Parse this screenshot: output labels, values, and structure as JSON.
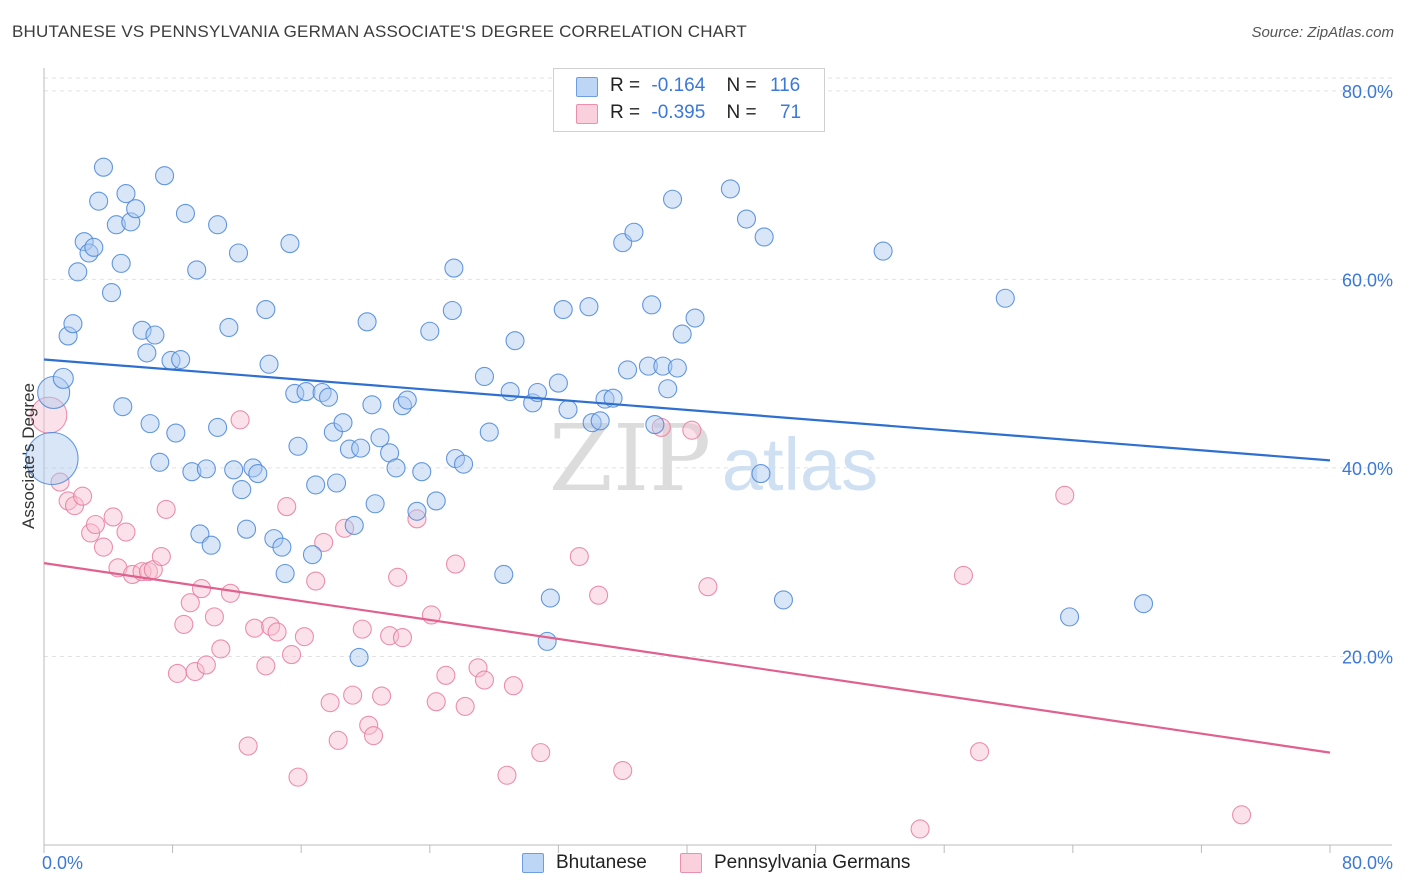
{
  "header": {
    "title": "BHUTANESE VS PENNSYLVANIA GERMAN ASSOCIATE'S DEGREE CORRELATION CHART",
    "source": "Source: ZipAtlas.com"
  },
  "legend": {
    "rows": [
      {
        "r_label": "R =",
        "r_value": "-0.164",
        "n_label": "N =",
        "n_value": "116"
      },
      {
        "r_label": "R =",
        "r_value": "-0.395",
        "n_label": "N =",
        "n_value": "71"
      }
    ]
  },
  "watermark": {
    "zip": "ZIP",
    "atlas": "atlas"
  },
  "colors": {
    "blue_fill": "#a9c8f0",
    "blue_stroke": "#4a86d8",
    "blue_line": "#2f6fd0",
    "pink_fill": "#f7bfd0",
    "pink_stroke": "#e87ca0",
    "pink_line": "#e0608e",
    "axis_label": "#3b78d8",
    "grid": "#e2e2e2"
  },
  "chart_data": {
    "type": "scatter",
    "title": "BHUTANESE VS PENNSYLVANIA GERMAN ASSOCIATE'S DEGREE CORRELATION CHART",
    "xlabel": "",
    "ylabel": "Associate's Degree",
    "xlim": [
      0,
      80
    ],
    "ylim": [
      0,
      82
    ],
    "x_tick_labels": [
      "0.0%",
      "80.0%"
    ],
    "y_ticks": [
      20,
      40,
      60,
      80
    ],
    "y_tick_labels": [
      "20.0%",
      "40.0%",
      "60.0%",
      "80.0%"
    ],
    "grid": true,
    "legend_position": "bottom-center",
    "series": [
      {
        "name": "Bhutanese",
        "color": "#a9c8f0",
        "trend": {
          "x": [
            0,
            80
          ],
          "y": [
            51.5,
            40.8
          ]
        },
        "points": [
          [
            0.5,
            41.0,
            26
          ],
          [
            0.6,
            48.0,
            16
          ],
          [
            1.2,
            49.5,
            10
          ],
          [
            1.5,
            54.0,
            9
          ],
          [
            1.8,
            55.3,
            9
          ],
          [
            2.1,
            60.8,
            9
          ],
          [
            2.5,
            64.0,
            9
          ],
          [
            2.8,
            62.8,
            9
          ],
          [
            3.1,
            63.4,
            9
          ],
          [
            3.4,
            68.3,
            9
          ],
          [
            3.7,
            71.9,
            9
          ],
          [
            4.2,
            58.6,
            9
          ],
          [
            4.5,
            65.8,
            9
          ],
          [
            4.8,
            61.7,
            9
          ],
          [
            5.1,
            69.1,
            9
          ],
          [
            5.4,
            66.1,
            9
          ],
          [
            5.7,
            67.5,
            9
          ],
          [
            6.1,
            54.6,
            9
          ],
          [
            6.4,
            52.2,
            9
          ],
          [
            6.6,
            44.7,
            9
          ],
          [
            6.9,
            54.1,
            9
          ],
          [
            7.2,
            40.6,
            9
          ],
          [
            7.5,
            71.0,
            9
          ],
          [
            7.9,
            51.4,
            9
          ],
          [
            8.2,
            43.7,
            9
          ],
          [
            8.5,
            51.5,
            9
          ],
          [
            8.8,
            67.0,
            9
          ],
          [
            9.2,
            39.6,
            9
          ],
          [
            9.5,
            61.0,
            9
          ],
          [
            9.7,
            33.0,
            9
          ],
          [
            10.1,
            39.9,
            9
          ],
          [
            10.4,
            31.8,
            9
          ],
          [
            10.8,
            44.3,
            9
          ],
          [
            10.8,
            65.8,
            9
          ],
          [
            11.5,
            54.9,
            9
          ],
          [
            11.8,
            39.8,
            9
          ],
          [
            12.1,
            62.8,
            9
          ],
          [
            12.3,
            37.7,
            9
          ],
          [
            12.6,
            33.5,
            9
          ],
          [
            13.0,
            40.0,
            9
          ],
          [
            13.3,
            39.4,
            9
          ],
          [
            13.8,
            56.8,
            9
          ],
          [
            14.0,
            51.0,
            9
          ],
          [
            14.3,
            32.5,
            9
          ],
          [
            14.8,
            31.6,
            9
          ],
          [
            15.0,
            28.8,
            9
          ],
          [
            15.3,
            63.8,
            9
          ],
          [
            15.6,
            47.9,
            9
          ],
          [
            15.8,
            42.3,
            9
          ],
          [
            16.3,
            48.1,
            9
          ],
          [
            16.7,
            30.8,
            9
          ],
          [
            16.9,
            38.2,
            9
          ],
          [
            17.3,
            48.0,
            9
          ],
          [
            17.7,
            47.5,
            9
          ],
          [
            18.0,
            43.8,
            9
          ],
          [
            18.2,
            38.4,
            9
          ],
          [
            18.6,
            44.8,
            9
          ],
          [
            19.0,
            42.0,
            9
          ],
          [
            19.3,
            33.9,
            9
          ],
          [
            19.7,
            42.1,
            9
          ],
          [
            20.1,
            55.5,
            9
          ],
          [
            20.4,
            46.7,
            9
          ],
          [
            20.6,
            36.2,
            9
          ],
          [
            20.9,
            43.2,
            9
          ],
          [
            21.5,
            41.6,
            9
          ],
          [
            21.9,
            40.0,
            9
          ],
          [
            22.3,
            46.6,
            9
          ],
          [
            22.6,
            47.2,
            9
          ],
          [
            23.2,
            35.4,
            9
          ],
          [
            23.5,
            39.6,
            9
          ],
          [
            24.0,
            54.5,
            9
          ],
          [
            24.4,
            36.5,
            9
          ],
          [
            25.4,
            56.7,
            9
          ],
          [
            25.5,
            61.2,
            9
          ],
          [
            25.6,
            41.0,
            9
          ],
          [
            26.1,
            40.4,
            9
          ],
          [
            27.4,
            49.7,
            9
          ],
          [
            27.7,
            43.8,
            9
          ],
          [
            28.6,
            28.7,
            9
          ],
          [
            29.0,
            48.1,
            9
          ],
          [
            29.3,
            53.5,
            9
          ],
          [
            30.4,
            46.9,
            9
          ],
          [
            30.7,
            48.0,
            9
          ],
          [
            31.3,
            21.6,
            9
          ],
          [
            31.5,
            26.2,
            9
          ],
          [
            32.0,
            49.0,
            9
          ],
          [
            32.3,
            56.8,
            9
          ],
          [
            32.6,
            46.2,
            9
          ],
          [
            33.9,
            57.1,
            9
          ],
          [
            34.1,
            44.8,
            9
          ],
          [
            34.6,
            45.0,
            9
          ],
          [
            34.9,
            47.3,
            9
          ],
          [
            35.4,
            47.4,
            9
          ],
          [
            36.0,
            63.9,
            9
          ],
          [
            36.3,
            50.4,
            9
          ],
          [
            36.7,
            65.0,
            9
          ],
          [
            37.6,
            50.8,
            9
          ],
          [
            37.8,
            57.3,
            9
          ],
          [
            38.0,
            44.6,
            9
          ],
          [
            38.5,
            50.8,
            9
          ],
          [
            38.8,
            48.4,
            9
          ],
          [
            39.1,
            68.5,
            9
          ],
          [
            39.4,
            50.6,
            9
          ],
          [
            39.7,
            54.2,
            9
          ],
          [
            40.5,
            55.9,
            9
          ],
          [
            42.7,
            69.6,
            9
          ],
          [
            43.7,
            66.4,
            9
          ],
          [
            44.6,
            39.4,
            9
          ],
          [
            44.8,
            64.5,
            9
          ],
          [
            46.0,
            26.0,
            9
          ],
          [
            52.2,
            63.0,
            9
          ],
          [
            59.8,
            58.0,
            9
          ],
          [
            63.8,
            24.2,
            9
          ],
          [
            68.4,
            25.6,
            9
          ],
          [
            19.6,
            19.9,
            9
          ],
          [
            4.9,
            46.5,
            9
          ]
        ]
      },
      {
        "name": "Pennsylvania Germans",
        "color": "#f7bfd0",
        "trend": {
          "x": [
            0,
            80
          ],
          "y": [
            29.9,
            9.8
          ]
        },
        "points": [
          [
            0.3,
            45.6,
            18
          ],
          [
            1.0,
            38.5,
            9
          ],
          [
            1.5,
            36.5,
            9
          ],
          [
            1.9,
            36.0,
            9
          ],
          [
            2.4,
            37.0,
            9
          ],
          [
            2.9,
            33.1,
            9
          ],
          [
            3.2,
            34.0,
            9
          ],
          [
            3.7,
            31.6,
            9
          ],
          [
            4.3,
            34.8,
            9
          ],
          [
            4.6,
            29.4,
            9
          ],
          [
            5.1,
            33.2,
            9
          ],
          [
            5.5,
            28.7,
            9
          ],
          [
            6.1,
            29.0,
            9
          ],
          [
            6.5,
            29.0,
            9
          ],
          [
            6.8,
            29.2,
            9
          ],
          [
            7.3,
            30.6,
            9
          ],
          [
            7.6,
            35.6,
            9
          ],
          [
            8.3,
            18.2,
            9
          ],
          [
            8.7,
            23.4,
            9
          ],
          [
            9.1,
            25.7,
            9
          ],
          [
            9.4,
            18.4,
            9
          ],
          [
            9.8,
            27.2,
            9
          ],
          [
            10.1,
            19.1,
            9
          ],
          [
            10.6,
            24.2,
            9
          ],
          [
            11.0,
            20.8,
            9
          ],
          [
            11.6,
            26.7,
            9
          ],
          [
            12.2,
            45.1,
            9
          ],
          [
            12.7,
            10.5,
            9
          ],
          [
            13.1,
            23.0,
            9
          ],
          [
            13.8,
            19.0,
            9
          ],
          [
            14.1,
            23.2,
            9
          ],
          [
            14.5,
            22.6,
            9
          ],
          [
            15.1,
            35.9,
            9
          ],
          [
            15.4,
            20.2,
            9
          ],
          [
            15.8,
            7.2,
            9
          ],
          [
            16.2,
            22.1,
            9
          ],
          [
            16.9,
            28.0,
            9
          ],
          [
            17.4,
            32.1,
            9
          ],
          [
            17.8,
            15.1,
            9
          ],
          [
            18.3,
            11.1,
            9
          ],
          [
            18.7,
            33.6,
            9
          ],
          [
            19.2,
            15.9,
            9
          ],
          [
            19.8,
            22.9,
            9
          ],
          [
            20.2,
            12.7,
            9
          ],
          [
            20.5,
            11.6,
            9
          ],
          [
            21.0,
            15.8,
            9
          ],
          [
            21.5,
            22.2,
            9
          ],
          [
            22.0,
            28.4,
            9
          ],
          [
            22.3,
            22.0,
            9
          ],
          [
            23.2,
            34.6,
            9
          ],
          [
            24.1,
            24.4,
            9
          ],
          [
            24.4,
            15.2,
            9
          ],
          [
            25.0,
            18.0,
            9
          ],
          [
            25.6,
            29.8,
            9
          ],
          [
            26.2,
            14.7,
            9
          ],
          [
            27.0,
            18.8,
            9
          ],
          [
            27.4,
            17.5,
            9
          ],
          [
            28.8,
            7.4,
            9
          ],
          [
            29.2,
            16.9,
            9
          ],
          [
            30.9,
            9.8,
            9
          ],
          [
            33.3,
            30.6,
            9
          ],
          [
            34.5,
            26.5,
            9
          ],
          [
            36.0,
            7.9,
            9
          ],
          [
            38.4,
            44.3,
            9
          ],
          [
            40.3,
            44.0,
            9
          ],
          [
            54.5,
            1.7,
            9
          ],
          [
            57.2,
            28.6,
            9
          ],
          [
            58.2,
            9.9,
            9
          ],
          [
            63.5,
            37.1,
            9
          ],
          [
            74.5,
            3.2,
            9
          ],
          [
            41.3,
            27.4,
            9
          ]
        ]
      }
    ]
  }
}
